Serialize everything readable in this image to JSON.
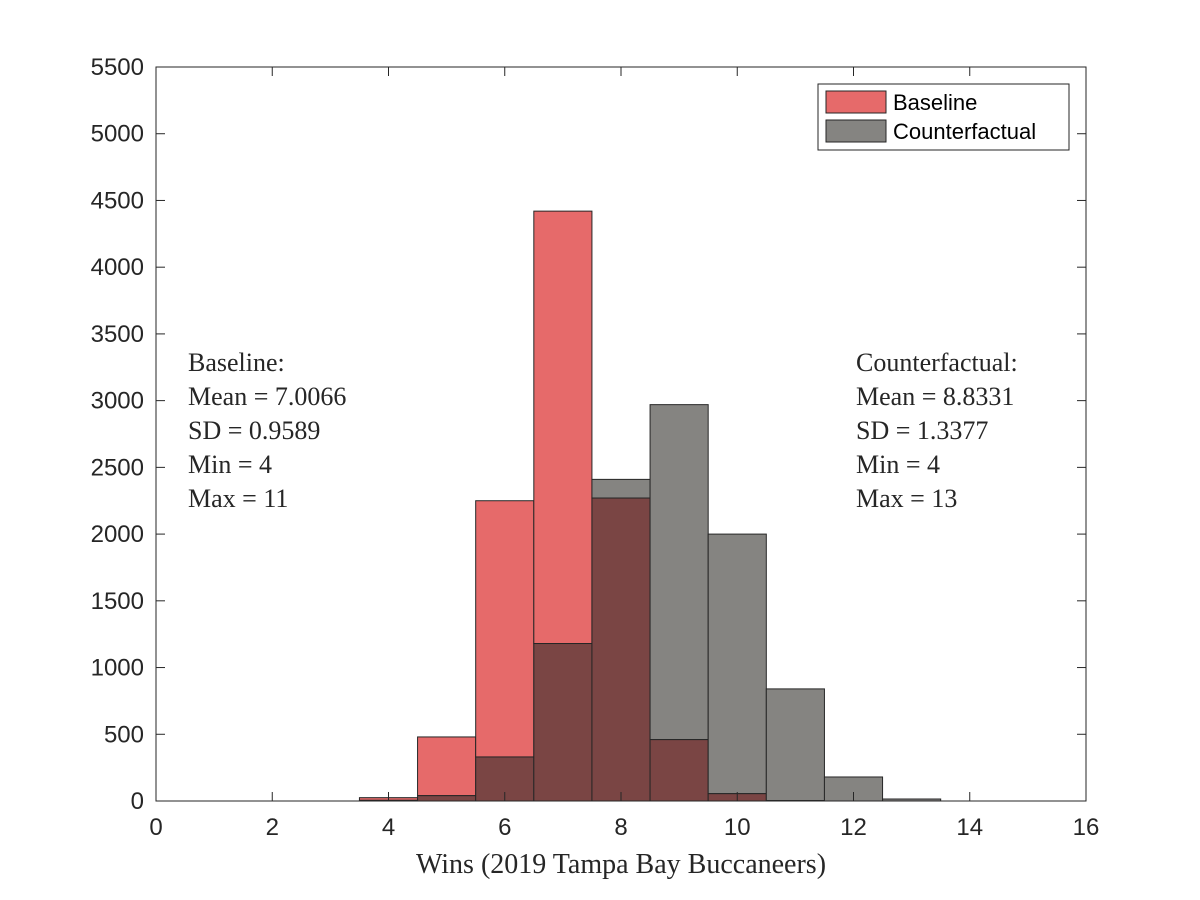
{
  "chart_data": {
    "type": "bar",
    "subtype": "overlaid histogram",
    "xlabel": "Wins (2019 Tampa Bay Buccaneers)",
    "ylabel": "",
    "xlim": [
      0,
      16
    ],
    "ylim": [
      0,
      5500
    ],
    "xticks": [
      0,
      2,
      4,
      6,
      8,
      10,
      12,
      14,
      16
    ],
    "yticks": [
      0,
      500,
      1000,
      1500,
      2000,
      2500,
      3000,
      3500,
      4000,
      4500,
      5000,
      5500
    ],
    "bin_width": 1,
    "grid": false,
    "legend_position": "top-right",
    "overlap_color": "#7a4544",
    "series": [
      {
        "name": "Baseline",
        "color": "#e66a6a",
        "bins": [
          {
            "center": 4,
            "value": 25
          },
          {
            "center": 5,
            "value": 480
          },
          {
            "center": 6,
            "value": 2250
          },
          {
            "center": 7,
            "value": 4420
          },
          {
            "center": 8,
            "value": 2270
          },
          {
            "center": 9,
            "value": 460
          },
          {
            "center": 10,
            "value": 55
          },
          {
            "center": 11,
            "value": 3
          }
        ]
      },
      {
        "name": "Counterfactual",
        "color": "#858481",
        "bins": [
          {
            "center": 4,
            "value": 5
          },
          {
            "center": 5,
            "value": 40
          },
          {
            "center": 6,
            "value": 330
          },
          {
            "center": 7,
            "value": 1180
          },
          {
            "center": 8,
            "value": 2410
          },
          {
            "center": 9,
            "value": 2970
          },
          {
            "center": 10,
            "value": 2000
          },
          {
            "center": 11,
            "value": 840
          },
          {
            "center": 12,
            "value": 180
          },
          {
            "center": 13,
            "value": 15
          }
        ]
      }
    ],
    "annotations": {
      "baseline": [
        "Baseline:",
        "Mean = 7.0066",
        "SD = 0.9589",
        "Min = 4",
        "Max = 11"
      ],
      "counterfactual": [
        "Counterfactual:",
        "Mean = 8.8331",
        "SD = 1.3377",
        "Min = 4",
        "Max = 13"
      ]
    }
  }
}
